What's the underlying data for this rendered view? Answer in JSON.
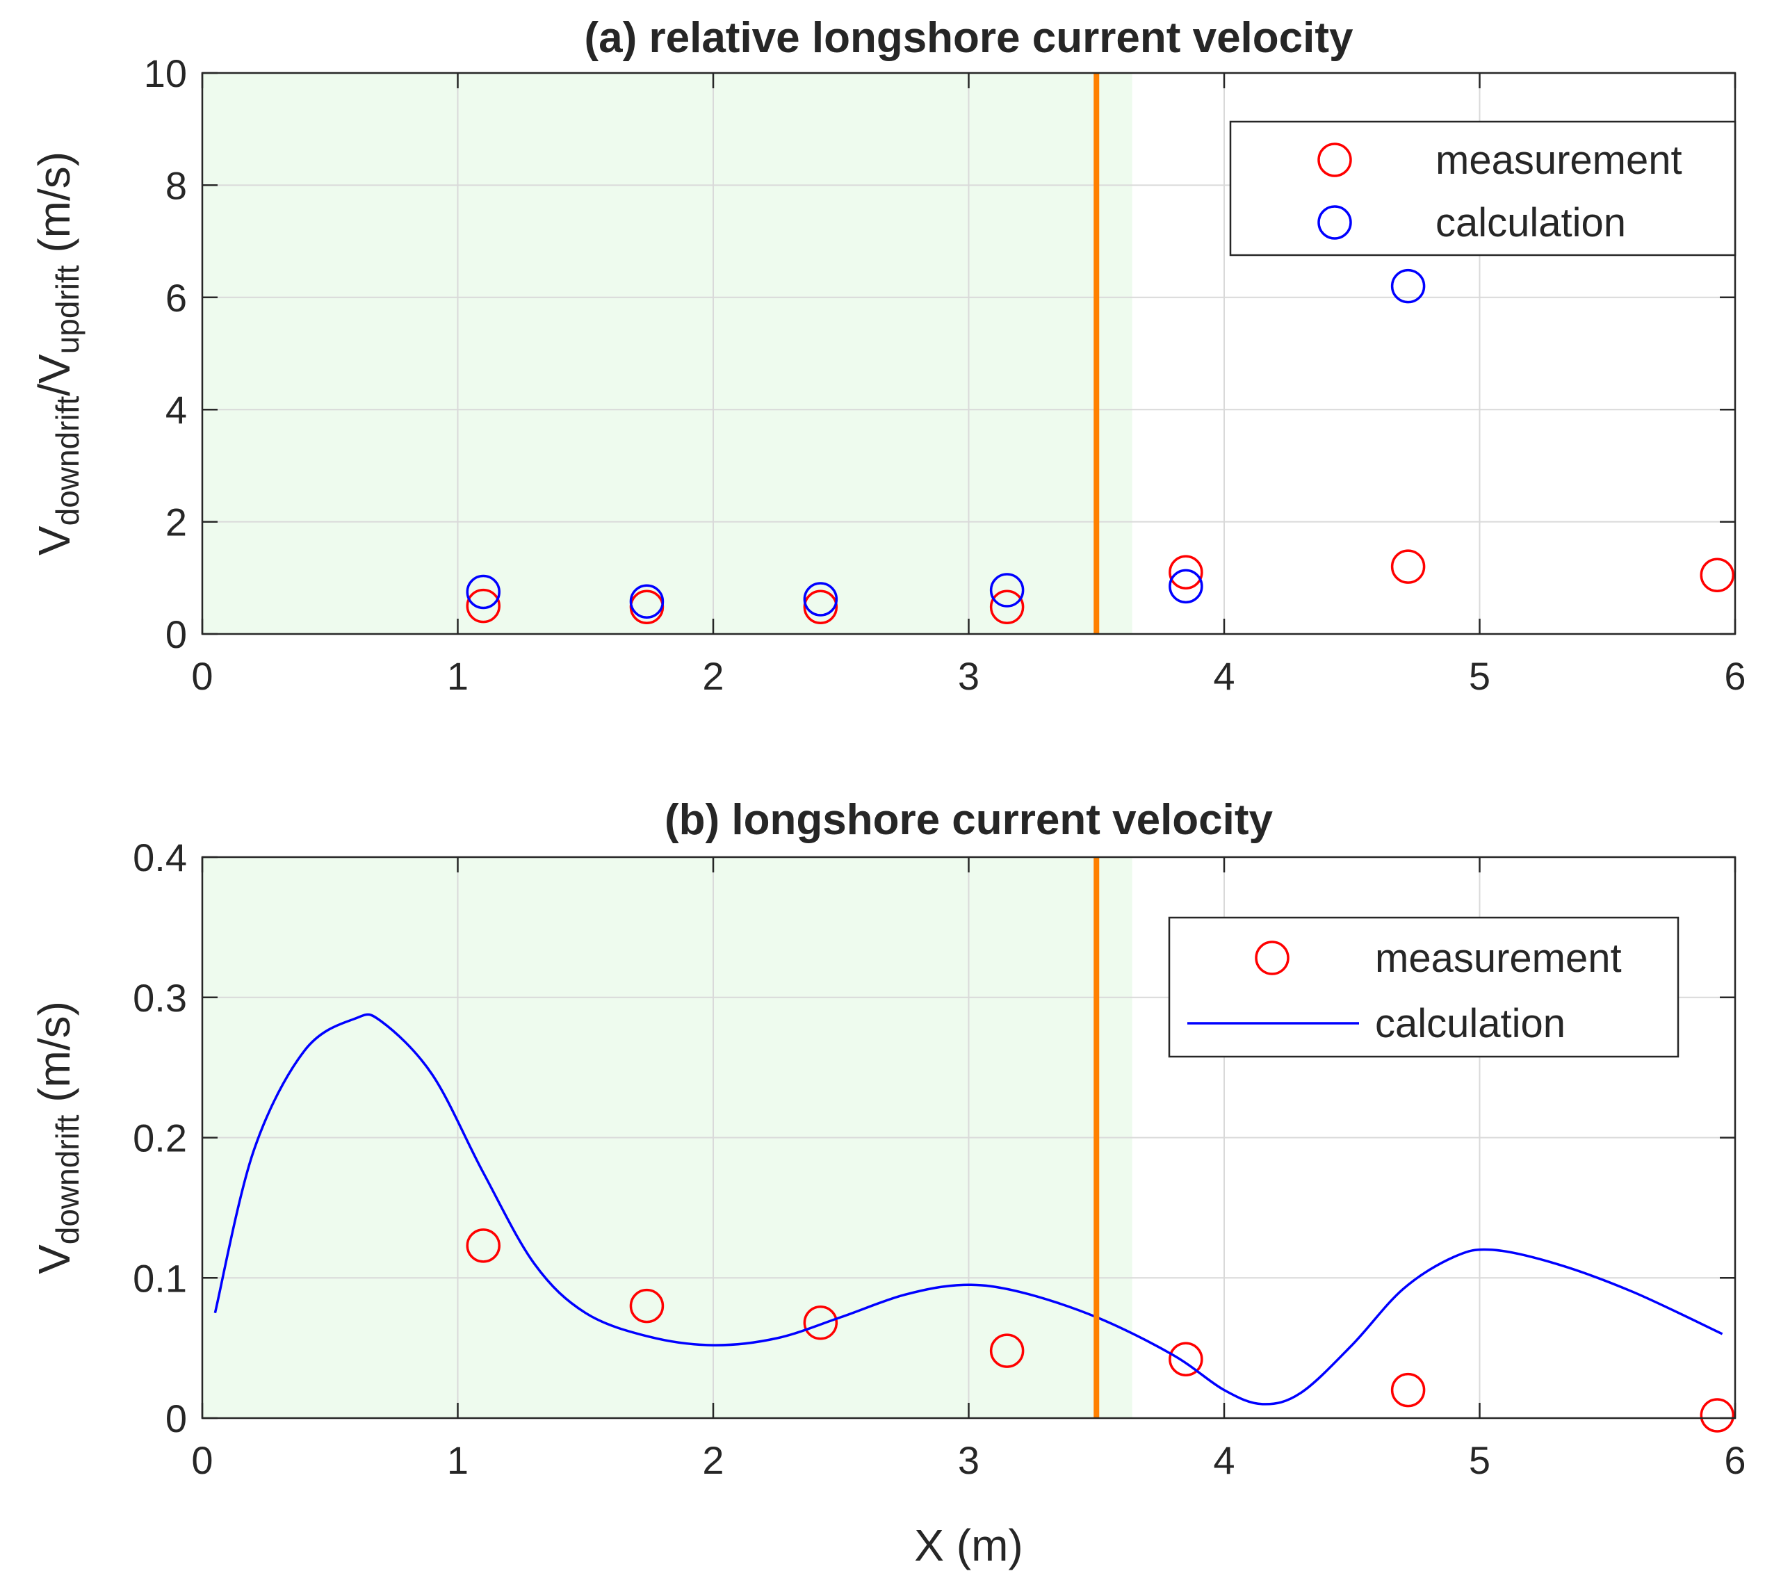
{
  "colors": {
    "background": "#ffffff",
    "shade": "#eefbee",
    "grid": "#d9d9d9",
    "axes": "#262626",
    "vline": "#ff8000",
    "measurement": "#ff0000",
    "calculation": "#0000ff"
  },
  "chart_data": [
    {
      "id": "a",
      "type": "scatter",
      "title": "(a) relative longshore current velocity",
      "xlabel": "",
      "ylabel_main": "V",
      "ylabel_sub1": "downdrift",
      "ylabel_mid": "/V",
      "ylabel_sub2": "updrift",
      "ylabel_unit": " (m/s)",
      "xlim": [
        0,
        6
      ],
      "ylim": [
        0,
        10
      ],
      "xticks": [
        0,
        1,
        2,
        3,
        4,
        5,
        6
      ],
      "yticks": [
        0,
        2,
        4,
        6,
        8,
        10
      ],
      "xtick_labels": [
        "0",
        "1",
        "2",
        "3",
        "4",
        "5",
        "6"
      ],
      "ytick_labels": [
        "0",
        "2",
        "4",
        "6",
        "8",
        "10"
      ],
      "grid": true,
      "shaded_region_x": [
        0,
        3.64
      ],
      "vertical_line_x": 3.5,
      "legend_position": "top-right",
      "series": [
        {
          "name": "measurement",
          "style": "circle",
          "color": "#ff0000",
          "x": [
            1.1,
            1.74,
            2.42,
            3.15,
            3.85,
            4.72,
            5.93
          ],
          "y": [
            0.5,
            0.48,
            0.48,
            0.48,
            1.1,
            1.2,
            1.05
          ]
        },
        {
          "name": "calculation",
          "style": "circle",
          "color": "#0000ff",
          "x": [
            1.1,
            1.74,
            2.42,
            3.15,
            3.85,
            4.72
          ],
          "y": [
            0.75,
            0.58,
            0.62,
            0.78,
            0.85,
            6.2
          ]
        }
      ]
    },
    {
      "id": "b",
      "type": "line",
      "title": "(b) longshore current velocity",
      "xlabel": "X (m)",
      "ylabel_main": "V",
      "ylabel_sub1": "downdrift",
      "ylabel_unit": " (m/s)",
      "xlim": [
        0,
        6
      ],
      "ylim": [
        0,
        0.4
      ],
      "xticks": [
        0,
        1,
        2,
        3,
        4,
        5,
        6
      ],
      "yticks": [
        0,
        0.1,
        0.2,
        0.3,
        0.4
      ],
      "xtick_labels": [
        "0",
        "1",
        "2",
        "3",
        "4",
        "5",
        "6"
      ],
      "ytick_labels": [
        "0",
        "0.1",
        "0.2",
        "0.3",
        "0.4"
      ],
      "grid": true,
      "shaded_region_x": [
        0,
        3.64
      ],
      "vertical_line_x": 3.5,
      "legend_position": "top-right",
      "series": [
        {
          "name": "measurement",
          "style": "circle",
          "color": "#ff0000",
          "x": [
            1.1,
            1.74,
            2.42,
            3.15,
            3.85,
            4.72,
            5.93
          ],
          "y": [
            0.123,
            0.08,
            0.068,
            0.048,
            0.042,
            0.02,
            0.002
          ]
        },
        {
          "name": "calculation",
          "style": "line",
          "color": "#0000ff",
          "x": [
            0.05,
            0.2,
            0.4,
            0.6,
            0.7,
            0.9,
            1.1,
            1.3,
            1.5,
            1.75,
            2.0,
            2.25,
            2.5,
            2.75,
            2.98,
            3.2,
            3.5,
            3.8,
            4.0,
            4.15,
            4.3,
            4.5,
            4.7,
            4.9,
            5.05,
            5.3,
            5.6,
            5.95
          ],
          "y": [
            0.075,
            0.19,
            0.262,
            0.285,
            0.283,
            0.245,
            0.175,
            0.11,
            0.075,
            0.058,
            0.052,
            0.057,
            0.072,
            0.088,
            0.095,
            0.09,
            0.072,
            0.045,
            0.02,
            0.01,
            0.018,
            0.052,
            0.092,
            0.115,
            0.12,
            0.11,
            0.09,
            0.06
          ]
        }
      ]
    }
  ]
}
